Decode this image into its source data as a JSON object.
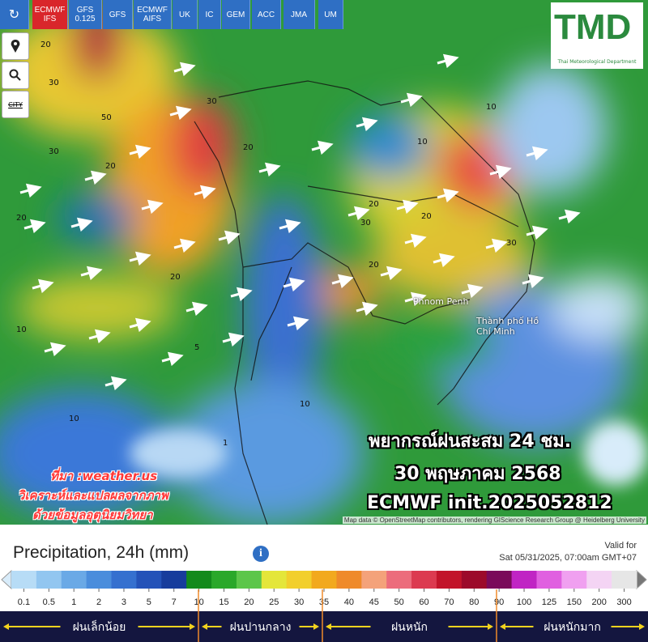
{
  "models": [
    "ECMWF IFS",
    "GFS 0.125",
    "GFS",
    "ECMWF AIFS",
    "UK",
    "IC",
    "GEM",
    "ACC",
    "JMA",
    "UM"
  ],
  "side_label": "CITY",
  "logo": {
    "text": "TMD",
    "subtitle": "Thai Meteorological Department"
  },
  "map_labels": [
    "Phnom Penh",
    "Thành phố Hồ Chí Minh"
  ],
  "contour_labels": [
    "20",
    "30",
    "50",
    "30",
    "20",
    "30",
    "20",
    "10",
    "20",
    "20",
    "30",
    "20",
    "10",
    "10",
    "20",
    "30",
    "20",
    "10",
    "1",
    "5",
    "10"
  ],
  "overlay": [
    "พยากรณ์ฝนสะสม 24 ชม.",
    "30 พฤษภาคม 2568",
    "ECMWF init.2025052812"
  ],
  "source": [
    "ที่มา :weather.us",
    "วิเคราะห์และแปลผลจากภาพ",
    "ด้วยข้อมูลอุตุนิยมวิทยา"
  ],
  "attribution": "Map data © OpenStreetMap contributors, rendering GIScience Research Group @ Heidelberg University",
  "legend": {
    "title": "Precipitation, 24h (mm)",
    "info": "i",
    "valid_label": "Valid for",
    "valid_time": "Sat 05/31/2025, 07:00am GMT+07",
    "labels": [
      "0.1",
      "0.5",
      "1",
      "2",
      "3",
      "5",
      "7",
      "10",
      "15",
      "20",
      "25",
      "30",
      "35",
      "40",
      "45",
      "50",
      "60",
      "70",
      "80",
      "90",
      "100",
      "125",
      "150",
      "200",
      "300"
    ],
    "colors": [
      "#b7dcf6",
      "#92c6f0",
      "#6aa9e6",
      "#4a8ddc",
      "#3570cf",
      "#2452b8",
      "#173c9c",
      "#138a1c",
      "#2aa82a",
      "#5cc64a",
      "#e4e63a",
      "#f2cf2c",
      "#f2a91e",
      "#ef8a2a",
      "#f4a27a",
      "#ec6c7c",
      "#dc3a50",
      "#c2142a",
      "#9c0a2a",
      "#7a0a5a",
      "#c024c4",
      "#e060e0",
      "#f0a0f0",
      "#f4d4f4",
      "#e6e6e6"
    ],
    "categories": [
      "ฝนเล็กน้อย",
      "ฝนปานกลาง",
      "ฝนหนัก",
      "ฝนหนักมาก"
    ]
  }
}
